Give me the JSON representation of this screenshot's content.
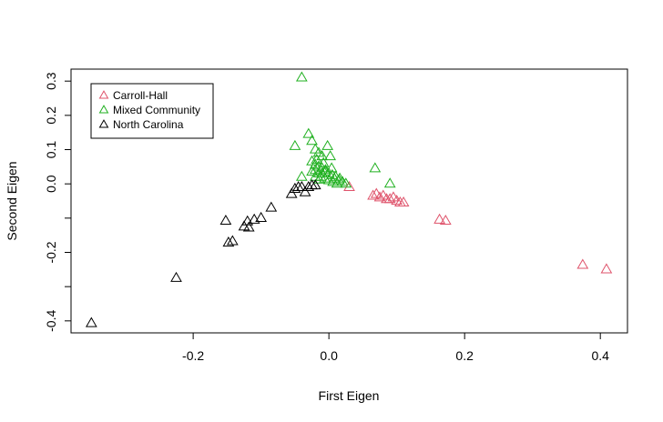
{
  "chart_data": {
    "type": "scatter",
    "title": "",
    "xlabel": "First Eigen",
    "ylabel": "Second Eigen",
    "xlim": [
      -0.38,
      0.44
    ],
    "ylim": [
      -0.435,
      0.335
    ],
    "xticks": [
      -0.2,
      0.0,
      0.2,
      0.4
    ],
    "xtick_labels": [
      "-0.2",
      "0.0",
      "0.2",
      "0.4"
    ],
    "yticks": [
      -0.4,
      -0.3,
      -0.2,
      -0.1,
      0.0,
      0.1,
      0.2,
      0.3
    ],
    "ytick_labels": [
      "-0.4",
      "",
      "-0.2",
      "",
      "0.0",
      "0.1",
      "0.2",
      "0.3"
    ],
    "grid": false,
    "marker": "open-triangle",
    "legend": {
      "position": "top-left"
    },
    "series": [
      {
        "name": "Carroll-Hall",
        "color": "#DF536B",
        "points": [
          [
            0.03,
            -0.01
          ],
          [
            0.065,
            -0.035
          ],
          [
            0.07,
            -0.03
          ],
          [
            0.075,
            -0.04
          ],
          [
            0.08,
            -0.035
          ],
          [
            0.085,
            -0.045
          ],
          [
            0.09,
            -0.045
          ],
          [
            0.095,
            -0.04
          ],
          [
            0.1,
            -0.05
          ],
          [
            0.105,
            -0.055
          ],
          [
            0.11,
            -0.055
          ],
          [
            0.163,
            -0.105
          ],
          [
            0.172,
            -0.108
          ],
          [
            0.374,
            -0.237
          ],
          [
            0.409,
            -0.25
          ]
        ]
      },
      {
        "name": "Mixed Community",
        "color": "#20B020",
        "points": [
          [
            -0.04,
            0.31
          ],
          [
            -0.05,
            0.11
          ],
          [
            -0.03,
            0.145
          ],
          [
            -0.025,
            0.125
          ],
          [
            -0.002,
            0.11
          ],
          [
            0.002,
            0.08
          ],
          [
            -0.04,
            0.02
          ],
          [
            0.068,
            0.045
          ],
          [
            0.09,
            0.0
          ],
          [
            0.025,
            0.0
          ],
          [
            -0.02,
            0.1
          ],
          [
            -0.015,
            0.09
          ],
          [
            -0.01,
            0.08
          ],
          [
            -0.025,
            0.065
          ],
          [
            -0.02,
            0.055
          ],
          [
            -0.015,
            0.05
          ],
          [
            -0.01,
            0.045
          ],
          [
            -0.005,
            0.04
          ],
          [
            -0.02,
            0.04
          ],
          [
            -0.015,
            0.03
          ],
          [
            -0.01,
            0.03
          ],
          [
            -0.005,
            0.035
          ],
          [
            0.0,
            0.03
          ],
          [
            0.005,
            0.025
          ],
          [
            0.01,
            0.02
          ],
          [
            0.015,
            0.01
          ],
          [
            0.02,
            0.005
          ],
          [
            -0.02,
            0.02
          ],
          [
            -0.012,
            0.02
          ],
          [
            -0.006,
            0.015
          ],
          [
            0.0,
            0.01
          ],
          [
            0.006,
            0.005
          ],
          [
            0.012,
            0.0
          ],
          [
            -0.025,
            0.035
          ],
          [
            -0.008,
            0.06
          ],
          [
            0.004,
            0.045
          ],
          [
            -0.018,
            0.07
          ],
          [
            0.008,
            0.015
          ],
          [
            0.016,
            0.015
          ],
          [
            -0.014,
            0.012
          ]
        ]
      },
      {
        "name": "North Carolina",
        "color": "#000000",
        "points": [
          [
            -0.35,
            -0.407
          ],
          [
            -0.225,
            -0.275
          ],
          [
            -0.152,
            -0.108
          ],
          [
            -0.148,
            -0.172
          ],
          [
            -0.142,
            -0.168
          ],
          [
            -0.125,
            -0.125
          ],
          [
            -0.12,
            -0.11
          ],
          [
            -0.118,
            -0.128
          ],
          [
            -0.11,
            -0.105
          ],
          [
            -0.1,
            -0.1
          ],
          [
            -0.085,
            -0.07
          ],
          [
            -0.055,
            -0.03
          ],
          [
            -0.05,
            -0.015
          ],
          [
            -0.045,
            -0.01
          ],
          [
            -0.04,
            -0.01
          ],
          [
            -0.035,
            -0.025
          ],
          [
            -0.03,
            -0.01
          ],
          [
            -0.025,
            -0.005
          ],
          [
            -0.02,
            -0.005
          ]
        ]
      }
    ]
  }
}
